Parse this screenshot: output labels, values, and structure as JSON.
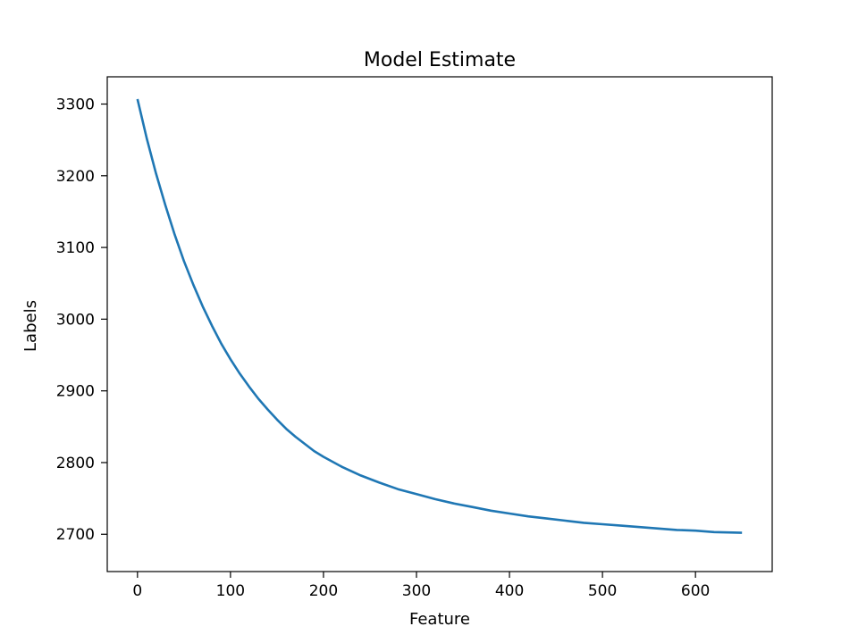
{
  "chart_data": {
    "type": "line",
    "title": "Model Estimate",
    "xlabel": "Feature",
    "ylabel": "Labels",
    "xlim": [
      -32.5,
      682.5
    ],
    "ylim": [
      2648,
      3338
    ],
    "xticks": [
      0,
      100,
      200,
      300,
      400,
      500,
      600
    ],
    "yticks": [
      2700,
      2800,
      2900,
      3000,
      3100,
      3200,
      3300
    ],
    "grid": false,
    "series": [
      {
        "color": "#1f77b4",
        "x": [
          0,
          10,
          20,
          30,
          40,
          50,
          60,
          70,
          80,
          90,
          100,
          110,
          120,
          130,
          140,
          150,
          160,
          170,
          180,
          190,
          200,
          220,
          240,
          260,
          280,
          300,
          320,
          340,
          360,
          380,
          400,
          420,
          440,
          460,
          480,
          500,
          520,
          540,
          560,
          580,
          600,
          620,
          650
        ],
        "y": [
          3307,
          3252,
          3203,
          3159,
          3118,
          3081,
          3048,
          3018,
          2991,
          2966,
          2944,
          2924,
          2906,
          2889,
          2874,
          2860,
          2847,
          2836,
          2826,
          2816,
          2808,
          2794,
          2782,
          2772,
          2763,
          2756,
          2749,
          2743,
          2738,
          2733,
          2729,
          2725,
          2722,
          2719,
          2716,
          2714,
          2712,
          2710,
          2708,
          2706,
          2705,
          2703,
          2702
        ]
      }
    ]
  }
}
